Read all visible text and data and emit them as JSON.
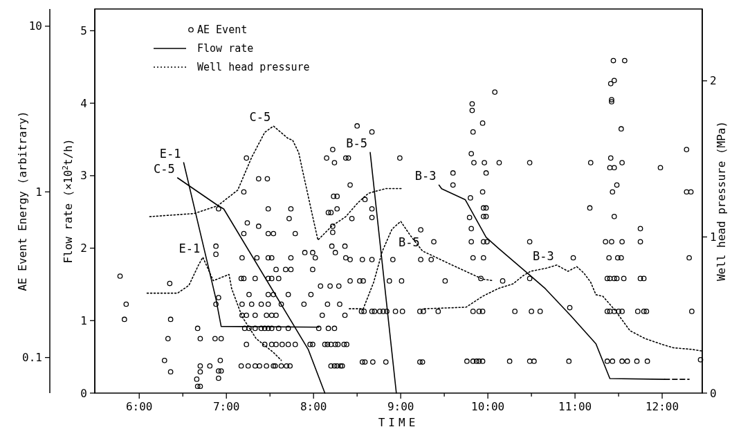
{
  "chart_data": {
    "type": "scatter",
    "xlabel": "TIME",
    "ylabel": "AE Event Energy (arbitrary)",
    "y2label": "Flow rate (×10$^{2}$t/h)",
    "y3label": "Well head pressure (MPa)",
    "xlim": [
      5.49,
      12.46
    ],
    "xticks": [
      {
        "value": 6,
        "label": "6:00"
      },
      {
        "value": 6.5,
        "label": null
      },
      {
        "value": 7,
        "label": "7:00"
      },
      {
        "value": 7.5,
        "label": null
      },
      {
        "value": 8,
        "label": "8:00"
      },
      {
        "value": 8.5,
        "label": null
      },
      {
        "value": 9,
        "label": "9:00"
      },
      {
        "value": 9.5,
        "label": null
      },
      {
        "value": 10,
        "label": "10:00"
      },
      {
        "value": 10.5,
        "label": null
      },
      {
        "value": 11,
        "label": "11:00"
      },
      {
        "value": 11.5,
        "label": null
      },
      {
        "value": 12,
        "label": "12:00"
      }
    ],
    "ylim": [
      0.061,
      12.7
    ],
    "yticks": [
      0.1,
      1,
      10
    ],
    "log": true,
    "y2lim": [
      0,
      5.3
    ],
    "y2ticks": [
      0,
      1,
      2,
      3,
      4,
      5
    ],
    "y3lim": [
      0,
      2.46
    ],
    "y3ticks": [
      0,
      1,
      2
    ],
    "legend": "top left",
    "series": [
      {
        "name": "AE Event",
        "marker": "circle",
        "color": "#000000",
        "x": [
          5.78,
          5.85,
          5.83,
          6.35,
          6.36,
          6.33,
          6.29,
          6.36,
          6.67,
          6.7,
          6.7,
          6.7,
          6.66,
          6.67,
          6.7,
          6.81,
          6.87,
          6.94,
          6.93,
          6.91,
          6.94,
          6.91,
          6.88,
          6.88,
          6.88,
          6.91,
          6.91,
          7.23,
          7.2,
          7.37,
          7.47,
          7.48,
          7.74,
          7.72,
          7.24,
          7.37,
          7.2,
          7.48,
          7.54,
          7.79,
          7.18,
          7.35,
          7.48,
          7.52,
          7.74,
          7.57,
          7.68,
          7.74,
          7.17,
          7.2,
          7.33,
          7.48,
          7.52,
          7.6,
          7.26,
          7.48,
          7.54,
          7.71,
          7.18,
          7.29,
          7.4,
          7.48,
          7.63,
          7.18,
          7.23,
          7.33,
          7.46,
          7.52,
          7.57,
          7.21,
          7.26,
          7.33,
          7.4,
          7.44,
          7.48,
          7.52,
          7.6,
          7.71,
          7.23,
          7.44,
          7.52,
          7.57,
          7.64,
          7.71,
          7.79,
          7.17,
          7.25,
          7.33,
          7.38,
          7.46,
          7.54,
          7.56,
          7.63,
          7.69,
          7.73,
          8.5,
          8.67,
          8.22,
          8.15,
          8.37,
          8.4,
          8.24,
          8.99,
          8.42,
          8.23,
          8.27,
          8.59,
          8.17,
          8.2,
          8.27,
          8.44,
          8.67,
          8.67,
          8.22,
          8.22,
          8.21,
          8.25,
          8.36,
          7.9,
          7.99,
          8.02,
          8.37,
          8.42,
          8.56,
          8.67,
          8.91,
          9.23,
          9.35,
          7.99,
          8.08,
          8.19,
          8.29,
          8.42,
          8.53,
          8.57,
          8.87,
          9.01,
          9.51,
          9.92,
          7.97,
          7.89,
          8.16,
          8.3,
          8.1,
          8.36,
          8.55,
          8.58,
          8.67,
          8.7,
          8.76,
          8.8,
          8.84,
          8.94,
          9.02,
          9.22,
          9.26,
          9.43,
          9.83,
          9.9,
          9.94,
          8.06,
          8.17,
          8.24,
          7.96,
          7.99,
          8.13,
          8.16,
          8.2,
          8.25,
          8.28,
          8.35,
          8.38,
          8.2,
          8.24,
          8.27,
          8.31,
          8.33,
          8.56,
          8.59,
          8.68,
          8.83,
          9.22,
          9.25,
          9.76,
          9.83,
          9.87,
          9.9,
          9.94,
          9.82,
          9.82,
          9.83,
          9.94,
          9.81,
          9.84,
          9.96,
          9.98,
          9.6,
          9.6,
          9.94,
          9.8,
          9.95,
          9.98,
          9.95,
          9.98,
          9.79,
          9.81,
          9.81,
          9.95,
          9.99,
          9.83,
          9.95,
          9.23,
          9.38,
          10.08,
          10.13,
          10.48,
          10.48,
          10.17,
          10.48,
          10.98,
          10.31,
          10.5,
          10.6,
          10.94,
          10.25,
          10.48,
          10.53,
          10.93,
          11.18,
          11.17,
          11.44,
          11.57,
          11.41,
          11.45,
          11.42,
          11.42,
          11.53,
          11.41,
          11.54,
          11.4,
          11.45,
          11.48,
          11.43,
          11.45,
          11.35,
          11.42,
          11.54,
          11.39,
          11.49,
          11.53,
          11.37,
          11.4,
          11.45,
          11.48,
          11.56,
          11.37,
          11.4,
          11.45,
          11.5,
          11.54,
          11.37,
          11.43,
          11.54,
          11.6,
          11.75,
          11.75,
          11.75,
          11.79,
          11.72,
          11.79,
          11.82,
          11.71,
          11.83,
          11.98,
          12.28,
          12.28,
          12.33,
          12.31,
          12.34,
          12.44
        ],
        "values": [
          0.31,
          0.21,
          0.17,
          0.28,
          0.17,
          0.13,
          0.096,
          0.082,
          0.15,
          0.13,
          0.089,
          0.082,
          0.074,
          0.067,
          0.067,
          0.089,
          0.13,
          0.13,
          0.096,
          0.083,
          0.083,
          0.075,
          0.47,
          0.42,
          0.21,
          0.23,
          0.79,
          1.6,
          1.0,
          1.2,
          1.2,
          0.79,
          0.79,
          0.69,
          0.65,
          0.62,
          0.56,
          0.56,
          0.56,
          0.56,
          0.4,
          0.4,
          0.4,
          0.4,
          0.4,
          0.34,
          0.34,
          0.34,
          0.3,
          0.3,
          0.3,
          0.3,
          0.3,
          0.3,
          0.24,
          0.24,
          0.24,
          0.24,
          0.21,
          0.21,
          0.21,
          0.21,
          0.21,
          0.18,
          0.18,
          0.18,
          0.18,
          0.18,
          0.18,
          0.15,
          0.15,
          0.15,
          0.15,
          0.15,
          0.15,
          0.15,
          0.15,
          0.15,
          0.12,
          0.12,
          0.12,
          0.12,
          0.12,
          0.12,
          0.12,
          0.089,
          0.089,
          0.089,
          0.089,
          0.089,
          0.089,
          0.089,
          0.089,
          0.089,
          0.089,
          2.5,
          2.3,
          1.8,
          1.6,
          1.6,
          1.6,
          1.5,
          1.6,
          1.1,
          0.94,
          0.94,
          0.9,
          0.75,
          0.75,
          0.79,
          0.69,
          0.79,
          0.7,
          0.62,
          0.57,
          0.47,
          0.43,
          0.47,
          0.43,
          0.43,
          0.4,
          0.4,
          0.39,
          0.39,
          0.39,
          0.39,
          0.39,
          0.39,
          0.34,
          0.27,
          0.27,
          0.27,
          0.29,
          0.29,
          0.29,
          0.29,
          0.29,
          0.29,
          0.3,
          0.24,
          0.21,
          0.21,
          0.21,
          0.18,
          0.18,
          0.19,
          0.19,
          0.19,
          0.19,
          0.19,
          0.19,
          0.19,
          0.19,
          0.19,
          0.19,
          0.19,
          0.19,
          0.19,
          0.19,
          0.19,
          0.15,
          0.15,
          0.15,
          0.12,
          0.12,
          0.12,
          0.12,
          0.12,
          0.12,
          0.12,
          0.12,
          0.12,
          0.089,
          0.089,
          0.089,
          0.089,
          0.089,
          0.094,
          0.094,
          0.094,
          0.094,
          0.094,
          0.094,
          0.095,
          0.095,
          0.095,
          0.095,
          0.095,
          3.4,
          3.1,
          2.3,
          2.6,
          1.7,
          1.5,
          1.5,
          1.3,
          1.3,
          1.1,
          1.0,
          0.92,
          0.8,
          0.8,
          0.71,
          0.71,
          0.7,
          0.6,
          0.5,
          0.5,
          0.5,
          0.4,
          0.4,
          0.59,
          0.5,
          4.0,
          1.5,
          1.5,
          0.5,
          0.29,
          0.3,
          0.4,
          0.19,
          0.19,
          0.19,
          0.2,
          0.095,
          0.095,
          0.095,
          0.095,
          1.5,
          0.8,
          6.2,
          6.2,
          4.5,
          4.7,
          3.6,
          3.5,
          2.4,
          1.6,
          1.5,
          1.4,
          1.4,
          1.1,
          1.0,
          0.71,
          0.5,
          0.5,
          0.5,
          0.4,
          0.4,
          0.4,
          0.3,
          0.3,
          0.3,
          0.3,
          0.3,
          0.19,
          0.19,
          0.19,
          0.19,
          0.19,
          0.095,
          0.095,
          0.095,
          0.095,
          0.6,
          0.5,
          0.3,
          0.3,
          0.19,
          0.19,
          0.19,
          0.095,
          0.095,
          1.4,
          1.8,
          1.0,
          1.0,
          0.4,
          0.19,
          0.097
        ]
      },
      {
        "name": "Flow rate",
        "type": "line",
        "axis": "y2",
        "line_style": "solid",
        "color": "#000000",
        "x": [
          6.51,
          6.88,
          6.94,
          8.06
        ],
        "values": [
          3.18,
          1.3,
          0.92,
          0.91
        ]
      },
      {
        "type": "line",
        "axis": "y2",
        "line_style": "solid",
        "color": "#000000",
        "x": [
          6.44,
          6.9,
          6.97,
          7.94,
          8.13
        ],
        "values": [
          2.97,
          2.59,
          2.54,
          0.6,
          0
        ]
      },
      {
        "type": "line",
        "axis": "y2",
        "line_style": "solid",
        "color": "#000000",
        "x": [
          8.65,
          8.95
        ],
        "values": [
          3.32,
          0
        ]
      },
      {
        "type": "line",
        "axis": "y2",
        "line_style": "solid",
        "color": "#000000",
        "x": [
          9.44,
          9.47,
          9.74,
          9.98,
          10.12,
          10.44,
          10.66,
          10.95,
          11.24,
          11.4,
          12.03
        ],
        "values": [
          2.87,
          2.82,
          2.67,
          2.15,
          2.0,
          1.67,
          1.44,
          1.07,
          0.68,
          0.2,
          0.19
        ]
      },
      {
        "type": "line",
        "axis": "y2",
        "line_style": "dashed",
        "color": "#000000",
        "x": [
          12.03,
          12.31
        ],
        "values": [
          0.19,
          0.19
        ]
      },
      {
        "name": "Well head pressure",
        "type": "line",
        "axis": "y3",
        "line_style": "dotted",
        "color": "#000000",
        "x": [
          6.12,
          6.63,
          6.9,
          7.13,
          7.29,
          7.44,
          7.54,
          7.71,
          7.76,
          7.83,
          7.88,
          8.05,
          8.21,
          8.37,
          8.51,
          8.63,
          8.83,
          9.01
        ],
        "values": [
          1.13,
          1.15,
          1.2,
          1.3,
          1.51,
          1.67,
          1.71,
          1.63,
          1.62,
          1.54,
          1.41,
          0.98,
          1.07,
          1.13,
          1.22,
          1.28,
          1.31,
          1.31
        ]
      },
      {
        "type": "line",
        "axis": "y3",
        "line_style": "dotted",
        "color": "#000000",
        "x": [
          6.09,
          6.44,
          6.57,
          6.68,
          6.73,
          6.85,
          7.03,
          7.06,
          7.18,
          7.34,
          7.54,
          7.63
        ],
        "values": [
          0.64,
          0.64,
          0.69,
          0.82,
          0.87,
          0.72,
          0.76,
          0.67,
          0.49,
          0.35,
          0.26,
          0.21
        ]
      },
      {
        "type": "line",
        "axis": "y3",
        "line_style": "dotted",
        "color": "#000000",
        "x": [
          8.41,
          8.57,
          8.69,
          8.79,
          8.9,
          9.0,
          9.11,
          9.25,
          9.59,
          9.94,
          10.06
        ],
        "values": [
          0.54,
          0.54,
          0.71,
          0.91,
          1.05,
          1.1,
          1.01,
          0.91,
          0.82,
          0.73,
          0.72
        ]
      },
      {
        "type": "line",
        "axis": "y3",
        "line_style": "dotted",
        "color": "#000000",
        "x": [
          9.27,
          9.75,
          9.94,
          10.12,
          10.29,
          10.4,
          10.49,
          10.67,
          10.79,
          10.92,
          11.02,
          11.1,
          11.18,
          11.24,
          11.32,
          11.46,
          11.63,
          11.8,
          12.01,
          12.13,
          12.34,
          12.45
        ],
        "values": [
          0.54,
          0.55,
          0.62,
          0.67,
          0.7,
          0.75,
          0.78,
          0.8,
          0.82,
          0.78,
          0.81,
          0.77,
          0.71,
          0.63,
          0.62,
          0.53,
          0.4,
          0.35,
          0.31,
          0.29,
          0.28,
          0.27
        ]
      }
    ],
    "annotations": [
      {
        "text": "E-1",
        "x": 6.51,
        "y": 1.5
      },
      {
        "text": "C-5",
        "x": 6.44,
        "y": 1.21
      },
      {
        "text": "C-5",
        "x": 7.54,
        "y": 2.49
      },
      {
        "text": "E-1",
        "x": 6.73,
        "y": 0.403
      },
      {
        "text": "B-5",
        "x": 8.65,
        "y": 1.73
      },
      {
        "text": "B-5",
        "x": 9.25,
        "y": 0.44
      },
      {
        "text": "B-3",
        "x": 9.44,
        "y": 1.1
      },
      {
        "text": "B-3",
        "x": 10.79,
        "y": 0.361
      }
    ]
  }
}
